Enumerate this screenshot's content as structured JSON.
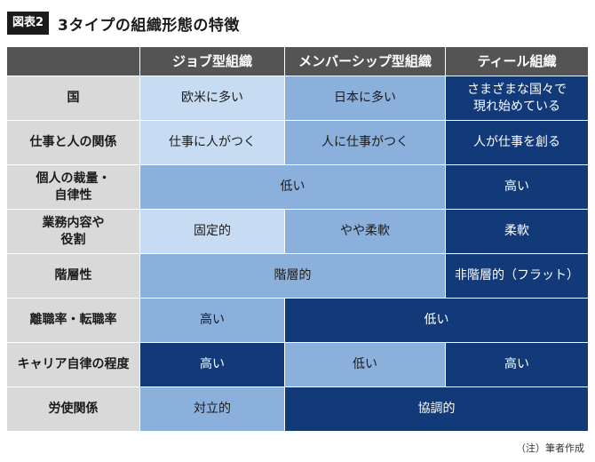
{
  "figure": {
    "badge": "図表2",
    "title": "3タイプの組織形態の特徴"
  },
  "columns": [
    "ジョブ型組織",
    "メンバーシップ型組織",
    "ティール組織"
  ],
  "rows": [
    {
      "label": "国",
      "cells": [
        "欧米に多い",
        "日本に多い",
        "さまざまな国々で\n現れ始めている"
      ]
    },
    {
      "label": "仕事と人の関係",
      "cells": [
        "仕事に人がつく",
        "人に仕事がつく",
        "人が仕事を創る"
      ]
    },
    {
      "label": "個人の裁量・\n自律性",
      "cells": [
        "低い",
        "高い"
      ]
    },
    {
      "label": "業務内容や\n役割",
      "cells": [
        "固定的",
        "やや柔軟",
        "柔軟"
      ]
    },
    {
      "label": "階層性",
      "cells": [
        "階層的",
        "非階層的（フラット）"
      ]
    },
    {
      "label": "離職率・転職率",
      "cells": [
        "高い",
        "低い"
      ]
    },
    {
      "label": "キャリア自律の程度",
      "cells": [
        "高い",
        "低い",
        "高い"
      ]
    },
    {
      "label": "労使関係",
      "cells": [
        "対立的",
        "協調的"
      ]
    }
  ],
  "note": "（注）筆者作成",
  "colors": {
    "header": "#545454",
    "row_header": "#d9d9d9",
    "light_blue": "#c7dcf3",
    "mid_blue": "#8cb0dc",
    "dark_navy": "#123a78"
  }
}
